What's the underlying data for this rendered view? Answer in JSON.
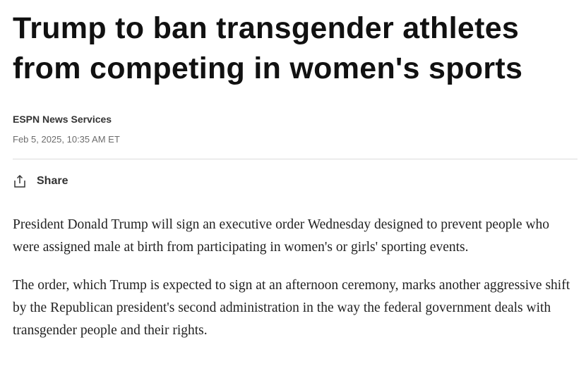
{
  "article": {
    "title": "Trump to ban transgender athletes from competing in women's sports",
    "author": "ESPN News Services",
    "date": "Feb 5, 2025, 10:35 AM ET",
    "share_label": "Share",
    "share_icon": "share-icon",
    "paragraphs": [
      "President Donald Trump will sign an executive order Wednesday designed to prevent people who were assigned male at birth from participating in women's or girls' sporting events.",
      "The order, which Trump is expected to sign at an afternoon ceremony, marks another aggressive shift by the Republican president's second administration in the way the federal government deals with transgender people and their rights."
    ]
  }
}
